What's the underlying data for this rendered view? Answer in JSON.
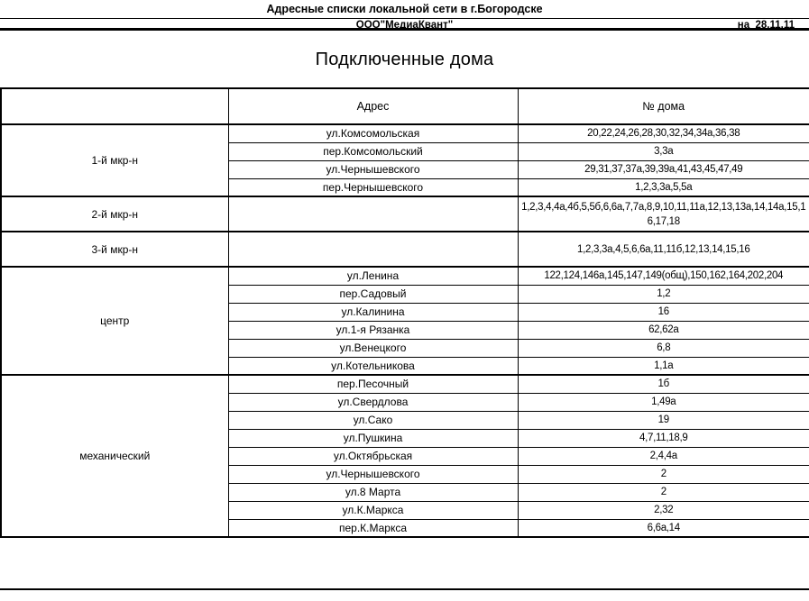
{
  "header": {
    "title": "Адресные списки локальной сети в г.Богородске",
    "company": "ООО\"МедиаКвант\"",
    "date": "на  28.11.11",
    "page_title": "Подключенные дома"
  },
  "table": {
    "columns": [
      "",
      "Адрес",
      "№ дома"
    ],
    "groups": [
      {
        "name": "1-й мкр-н",
        "rows": [
          {
            "address": "ул.Комсомольская",
            "houses": "20,22,24,26,28,30,32,34,34а,36,38"
          },
          {
            "address": "пер.Комсомольский",
            "houses": "3,3а"
          },
          {
            "address": "ул.Чернышевского",
            "houses": "29,31,37,37а,39,39а,41,43,45,47,49"
          },
          {
            "address": "пер.Чернышевского",
            "houses": "1,2,3,3а,5,5а"
          }
        ]
      },
      {
        "name": "2-й мкр-н",
        "rows": [
          {
            "address": "",
            "houses": "1,2,3,4,4а,4б,5,5б,6,6а,7,7а,8,9,10,11,11а,12,13,13а,14,14а,15,16,17,18"
          }
        ]
      },
      {
        "name": "3-й мкр-н",
        "rows": [
          {
            "address": "",
            "houses": "1,2,3,3а,4,5,6,6а,11,11б,12,13,14,15,16"
          }
        ]
      },
      {
        "name": "центр",
        "rows": [
          {
            "address": "ул.Ленина",
            "houses": "122,124,146а,145,147,149(общ),150,162,164,202,204"
          },
          {
            "address": "пер.Садовый",
            "houses": "1,2"
          },
          {
            "address": "ул.Калинина",
            "houses": "16"
          },
          {
            "address": "ул.1-я Рязанка",
            "houses": "62,62а"
          },
          {
            "address": "ул.Венецкого",
            "houses": "6,8"
          },
          {
            "address": "ул.Котельникова",
            "houses": "1,1а"
          }
        ]
      },
      {
        "name": "механический",
        "rows": [
          {
            "address": "пер.Песочный",
            "houses": "1б"
          },
          {
            "address": "ул.Свердлова",
            "houses": "1,49а"
          },
          {
            "address": "ул.Сако",
            "houses": "19"
          },
          {
            "address": "ул.Пушкина",
            "houses": "4,7,11,18,9"
          },
          {
            "address": "ул.Октябрьская",
            "houses": "2,4,4а"
          },
          {
            "address": "ул.Чернышевского",
            "houses": "2"
          },
          {
            "address": "ул.8 Марта",
            "houses": "2"
          },
          {
            "address": "ул.К.Маркса",
            "houses": "2,32"
          },
          {
            "address": "пер.К.Маркса",
            "houses": "6,6а,14"
          }
        ]
      }
    ]
  }
}
